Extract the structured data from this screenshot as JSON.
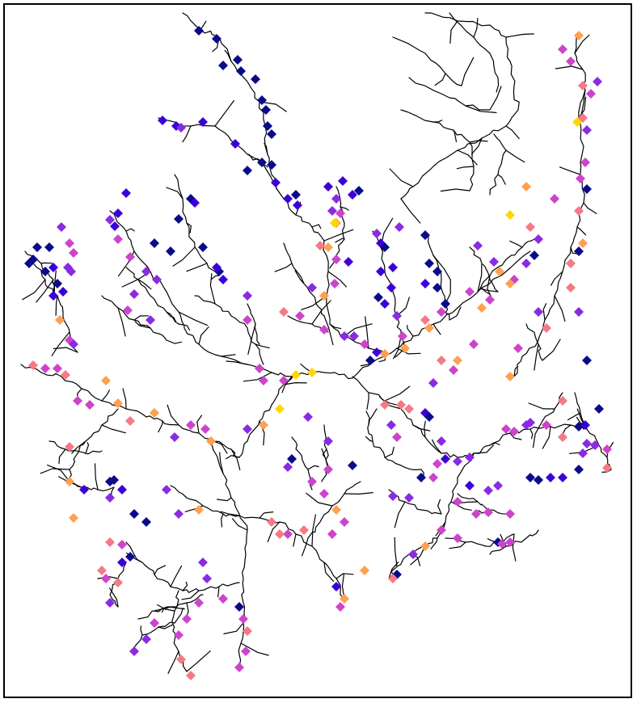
{
  "map": {
    "type": "river-network-site-map",
    "background_color": "#ffffff",
    "river_color": "#000000",
    "marker_shape": "diamond",
    "marker_colors": [
      "#ffd700",
      "#ffa050",
      "#f47a86",
      "#cc44cc",
      "#8a2be2",
      "#3a00d8",
      "#0a0a8a"
    ]
  }
}
